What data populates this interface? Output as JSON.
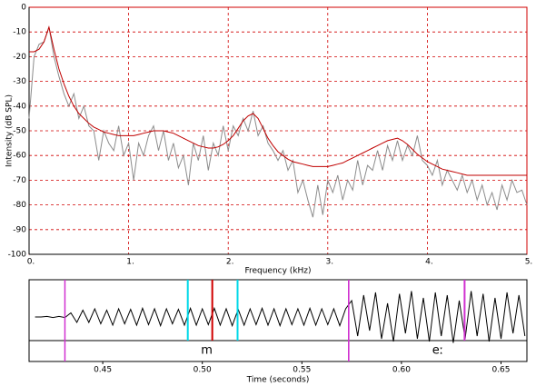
{
  "chart_data": [
    {
      "type": "line",
      "xlabel": "Frequency (kHz)",
      "ylabel": "Intensity (dB SPL)",
      "x": [
        0,
        0.05,
        0.1,
        0.15,
        0.2,
        0.25,
        0.3,
        0.35,
        0.4,
        0.45,
        0.5,
        0.55,
        0.6,
        0.65,
        0.7,
        0.75,
        0.8,
        0.85,
        0.9,
        0.95,
        1,
        1.05,
        1.1,
        1.15,
        1.2,
        1.25,
        1.3,
        1.35,
        1.4,
        1.45,
        1.5,
        1.55,
        1.6,
        1.65,
        1.7,
        1.75,
        1.8,
        1.85,
        1.9,
        1.95,
        2,
        2.05,
        2.1,
        2.15,
        2.2,
        2.25,
        2.3,
        2.35,
        2.4,
        2.45,
        2.5,
        2.55,
        2.6,
        2.65,
        2.7,
        2.75,
        2.8,
        2.85,
        2.9,
        2.95,
        3,
        3.05,
        3.1,
        3.15,
        3.2,
        3.25,
        3.3,
        3.35,
        3.4,
        3.45,
        3.5,
        3.55,
        3.6,
        3.65,
        3.7,
        3.75,
        3.8,
        3.85,
        3.9,
        3.95,
        4,
        4.05,
        4.1,
        4.15,
        4.2,
        4.25,
        4.3,
        4.35,
        4.4,
        4.45,
        4.5,
        4.55,
        4.6,
        4.65,
        4.7,
        4.75,
        4.8,
        4.85,
        4.9,
        4.95,
        5
      ],
      "series": [
        {
          "color": "#8c8c8c",
          "values": [
            -45,
            -20,
            -15,
            -14,
            -8,
            -20,
            -28,
            -35,
            -40,
            -35,
            -45,
            -40,
            -48,
            -50,
            -62,
            -50,
            -55,
            -58,
            -48,
            -60,
            -55,
            -70,
            -55,
            -60,
            -52,
            -48,
            -58,
            -50,
            -62,
            -55,
            -65,
            -60,
            -72,
            -55,
            -62,
            -52,
            -66,
            -55,
            -60,
            -48,
            -58,
            -48,
            -52,
            -45,
            -50,
            -42,
            -52,
            -48,
            -55,
            -58,
            -62,
            -58,
            -66,
            -62,
            -75,
            -70,
            -78,
            -85,
            -72,
            -84,
            -70,
            -75,
            -68,
            -78,
            -70,
            -74,
            -62,
            -72,
            -64,
            -66,
            -58,
            -66,
            -56,
            -62,
            -54,
            -62,
            -56,
            -60,
            -52,
            -62,
            -64,
            -68,
            -62,
            -72,
            -66,
            -70,
            -74,
            -68,
            -75,
            -70,
            -78,
            -72,
            -80,
            -75,
            -82,
            -72,
            -78,
            -70,
            -75,
            -74,
            -80
          ]
        },
        {
          "color": "#c00000",
          "values": [
            -18,
            -18,
            -17,
            -14,
            -8,
            -17,
            -25,
            -31,
            -36,
            -40,
            -43,
            -45,
            -47,
            -48.5,
            -49.5,
            -50.5,
            -51,
            -51.5,
            -52,
            -52,
            -52,
            -52,
            -51.5,
            -51,
            -50.5,
            -50,
            -50,
            -50,
            -50.5,
            -51,
            -52,
            -53,
            -54,
            -55,
            -56,
            -56.5,
            -57,
            -57,
            -56.5,
            -55.5,
            -54,
            -52,
            -49,
            -46,
            -44,
            -43,
            -45,
            -49,
            -53,
            -56,
            -58.5,
            -60,
            -61.5,
            -62.5,
            -63,
            -63.5,
            -64,
            -64.5,
            -64.5,
            -64.5,
            -64.5,
            -64,
            -63.5,
            -63,
            -62,
            -61,
            -60,
            -59,
            -58,
            -57,
            -56,
            -55,
            -54,
            -53.5,
            -53,
            -54,
            -55.5,
            -57.5,
            -59.5,
            -61,
            -62.5,
            -63.5,
            -64.5,
            -65.5,
            -66,
            -66.5,
            -67,
            -67.5,
            -68,
            -68,
            -68,
            -68,
            -68,
            -68,
            -68,
            -68,
            -68,
            -68,
            -68,
            -68,
            -68
          ]
        }
      ],
      "xlim": [
        0,
        5
      ],
      "xticks": [
        {
          "value": 0,
          "label": "0."
        },
        {
          "value": 1,
          "label": "1."
        },
        {
          "value": 2,
          "label": "2."
        },
        {
          "value": 3,
          "label": "3."
        },
        {
          "value": 4,
          "label": "4."
        },
        {
          "value": 5,
          "label": "5."
        }
      ],
      "ylim": [
        -100,
        0
      ],
      "yticks": [
        0,
        -10,
        -20,
        -30,
        -40,
        -50,
        -60,
        -70,
        -80,
        -90,
        -100
      ],
      "grid": true,
      "grid_color": "#d00000"
    },
    {
      "type": "waveform",
      "xlabel": "Time (seconds)",
      "x": [
        0.416,
        0.419,
        0.422,
        0.425,
        0.428,
        0.431,
        0.434,
        0.437,
        0.44,
        0.443,
        0.446,
        0.449,
        0.452,
        0.455,
        0.458,
        0.461,
        0.464,
        0.467,
        0.47,
        0.473,
        0.476,
        0.479,
        0.482,
        0.485,
        0.488,
        0.491,
        0.494,
        0.497,
        0.5,
        0.503,
        0.506,
        0.509,
        0.512,
        0.515,
        0.518,
        0.521,
        0.524,
        0.527,
        0.53,
        0.533,
        0.536,
        0.539,
        0.542,
        0.545,
        0.548,
        0.551,
        0.554,
        0.557,
        0.56,
        0.563,
        0.566,
        0.569,
        0.572,
        0.575,
        0.578,
        0.581,
        0.584,
        0.587,
        0.59,
        0.593,
        0.596,
        0.599,
        0.602,
        0.605,
        0.608,
        0.611,
        0.614,
        0.617,
        0.62,
        0.623,
        0.626,
        0.629,
        0.632,
        0.635,
        0.638,
        0.641,
        0.644,
        0.647,
        0.65,
        0.653,
        0.656,
        0.659,
        0.662
      ],
      "values": [
        0,
        0,
        0.02,
        -0.02,
        0.02,
        -0.02,
        0.15,
        -0.2,
        0.25,
        -0.2,
        0.3,
        -0.25,
        0.25,
        -0.3,
        0.3,
        -0.25,
        0.28,
        -0.3,
        0.32,
        -0.28,
        0.3,
        -0.32,
        0.3,
        -0.25,
        0.28,
        -0.3,
        0.32,
        -0.3,
        0.3,
        -0.28,
        0.32,
        -0.3,
        0.3,
        -0.32,
        0.28,
        -0.3,
        0.3,
        -0.28,
        0.32,
        -0.3,
        0.3,
        -0.32,
        0.3,
        -0.28,
        0.3,
        -0.3,
        0.32,
        -0.3,
        0.3,
        -0.28,
        0.3,
        -0.32,
        0.3,
        0.6,
        -0.7,
        0.8,
        -0.5,
        0.9,
        -0.8,
        0.5,
        -0.9,
        0.85,
        -0.6,
        0.95,
        -0.8,
        0.7,
        -0.9,
        0.9,
        -0.7,
        0.8,
        -0.95,
        0.6,
        -0.8,
        0.95,
        -0.7,
        0.85,
        -0.9,
        0.7,
        -0.8,
        0.9,
        -0.6,
        0.8,
        -0.7
      ],
      "color": "#000000",
      "ylim": [
        -1,
        1
      ],
      "xlim": [
        0.413,
        0.663
      ],
      "xticks": [
        0.45,
        {
          "value": 0.5,
          "label": "0.50"
        },
        0.55,
        {
          "value": 0.6,
          "label": "0.60"
        },
        0.65
      ],
      "markers": [
        {
          "value": 0.4927,
          "color": "#00d8e8"
        },
        {
          "value": 0.505,
          "color": "#d00000"
        },
        {
          "value": 0.5177,
          "color": "#00d8e8"
        },
        {
          "value": 0.6317,
          "color": "#d030d0"
        }
      ],
      "segments": [
        {
          "label": "m",
          "start": 0.431,
          "end": 0.5735
        },
        {
          "label": "eː",
          "start": 0.5735
        }
      ],
      "segment_color": "#d030d0"
    }
  ]
}
